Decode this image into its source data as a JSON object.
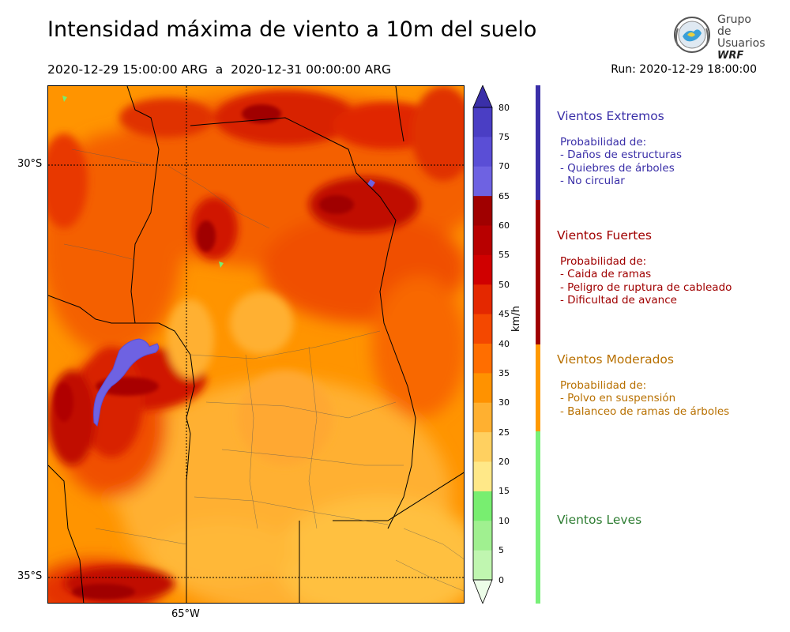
{
  "header": {
    "title": "Intensidad máxima de viento a 10m del suelo",
    "period": "2020-12-29 15:00:00 ARG  a  2020-12-31 00:00:00 ARG",
    "run": "Run: 2020-12-29 18:00:00"
  },
  "logo": {
    "line1": "Grupo de",
    "line2": "Usuarios",
    "line3": "WRF"
  },
  "map": {
    "lat_labels": [
      "30°S",
      "35°S"
    ],
    "lon_labels": [
      "65°W"
    ]
  },
  "colorbar": {
    "unit": "km/h",
    "ticks": [
      "80",
      "75",
      "70",
      "65",
      "60",
      "55",
      "50",
      "45",
      "40",
      "35",
      "30",
      "25",
      "20",
      "15",
      "10",
      "5",
      "0"
    ],
    "colors": [
      "#3a2fa8",
      "#4a3ec4",
      "#5a4ed6",
      "#6e62e2",
      "#a00000",
      "#b80000",
      "#d00000",
      "#e42800",
      "#f44800",
      "#ff6e00",
      "#ff9200",
      "#ffb030",
      "#ffd060",
      "#ffe888",
      "#78ee70",
      "#a0f090",
      "#c0f6b0",
      "#d8fad0",
      "#ecfde8"
    ]
  },
  "categories": [
    {
      "title": "Vientos Extremos",
      "color": "#3a2fa8",
      "text_color": "#3a2fa8",
      "desc": "Probabilidad de:\n- Daños de estructuras\n- Quiebres de árboles\n- No circular"
    },
    {
      "title": "Vientos Fuertes",
      "color": "#a00000",
      "text_color": "#a00000",
      "desc": "Probabilidad de:\n- Caida de ramas\n- Peligro de ruptura de cableado\n- Dificultad de avance"
    },
    {
      "title": "Vientos Moderados",
      "color": "#ff9a00",
      "text_color": "#b87000",
      "desc": "Probabilidad de:\n- Polvo en suspensión\n- Balanceo de ramas de árboles"
    },
    {
      "title": "Vientos Leves",
      "color": "#78f078",
      "text_color": "#2e7d32",
      "desc": ""
    }
  ]
}
